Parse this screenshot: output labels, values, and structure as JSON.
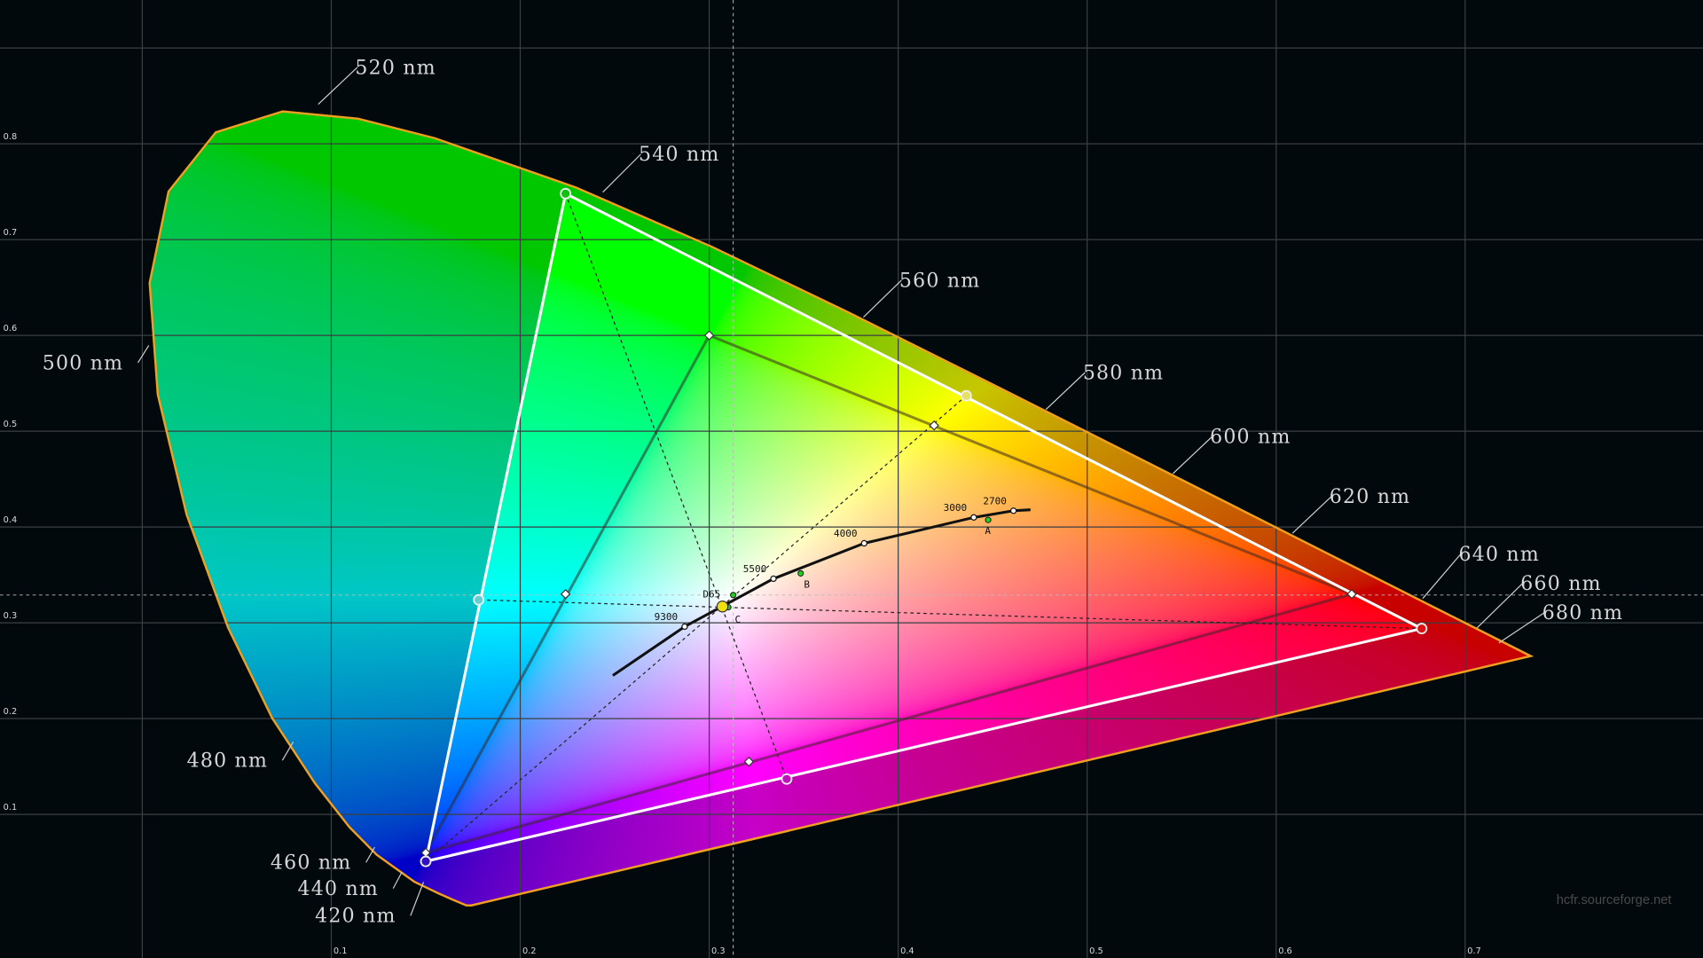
{
  "watermark": "hcfr.sourceforge.net",
  "chart_data": {
    "type": "scatter",
    "title": "",
    "xlabel": "",
    "ylabel": "",
    "xlim": [
      0.0,
      0.82
    ],
    "ylim": [
      0.0,
      0.95
    ],
    "grid": true,
    "x_ticks": [
      "0.1",
      "0.2",
      "0.3",
      "0.4",
      "0.5",
      "0.6",
      "0.7"
    ],
    "y_ticks": [
      "0.1",
      "0.2",
      "0.3",
      "0.4",
      "0.5",
      "0.6",
      "0.7",
      "0.8"
    ],
    "spectral_locus": [
      [
        380,
        0.1741,
        0.005
      ],
      [
        420,
        0.1714,
        0.0051
      ],
      [
        440,
        0.1644,
        0.0109
      ],
      [
        450,
        0.1566,
        0.0177
      ],
      [
        460,
        0.144,
        0.0297
      ],
      [
        470,
        0.1241,
        0.0578
      ],
      [
        475,
        0.1096,
        0.0868
      ],
      [
        480,
        0.0913,
        0.1327
      ],
      [
        485,
        0.0687,
        0.2007
      ],
      [
        490,
        0.0454,
        0.295
      ],
      [
        495,
        0.0235,
        0.4127
      ],
      [
        500,
        0.0082,
        0.5384
      ],
      [
        505,
        0.0039,
        0.6548
      ],
      [
        510,
        0.0139,
        0.7502
      ],
      [
        515,
        0.0389,
        0.812
      ],
      [
        520,
        0.0743,
        0.8338
      ],
      [
        525,
        0.1142,
        0.8262
      ],
      [
        530,
        0.1547,
        0.8059
      ],
      [
        540,
        0.2296,
        0.7543
      ],
      [
        550,
        0.3016,
        0.6923
      ],
      [
        560,
        0.3731,
        0.6245
      ],
      [
        570,
        0.4441,
        0.5547
      ],
      [
        580,
        0.5125,
        0.4866
      ],
      [
        590,
        0.5752,
        0.4242
      ],
      [
        600,
        0.627,
        0.3725
      ],
      [
        620,
        0.6915,
        0.3083
      ],
      [
        640,
        0.719,
        0.2809
      ],
      [
        700,
        0.7347,
        0.2653
      ]
    ],
    "wavelength_labels": [
      "520 nm",
      "540 nm",
      "560 nm",
      "580 nm",
      "600 nm",
      "620 nm",
      "640 nm",
      "660 nm",
      "680 nm",
      "500 nm",
      "480 nm",
      "460 nm",
      "440 nm",
      "420 nm"
    ],
    "measured_gamut": {
      "red": [
        0.677,
        0.294
      ],
      "green": [
        0.224,
        0.748
      ],
      "blue": [
        0.15,
        0.051
      ],
      "cyan": [
        0.178,
        0.324
      ],
      "magenta": [
        0.341,
        0.137
      ],
      "yellow": [
        0.436,
        0.537
      ],
      "white": [
        0.307,
        0.317
      ]
    },
    "reference_gamut": {
      "red": [
        0.64,
        0.33
      ],
      "green": [
        0.3,
        0.6
      ],
      "blue": [
        0.15,
        0.06
      ],
      "cyan": [
        0.224,
        0.33
      ],
      "magenta": [
        0.321,
        0.155
      ],
      "yellow": [
        0.419,
        0.506
      ]
    },
    "reference_white": [
      0.3127,
      0.329
    ],
    "planckian_locus": [
      [
        0.249,
        0.245
      ],
      [
        0.287,
        0.296
      ],
      [
        0.334,
        0.346
      ],
      [
        0.382,
        0.383
      ],
      [
        0.44,
        0.41
      ],
      [
        0.461,
        0.417
      ],
      [
        0.47,
        0.418
      ]
    ],
    "cct_points": [
      {
        "label": "9300",
        "x": 0.287,
        "y": 0.296
      },
      {
        "label": "5500",
        "x": 0.334,
        "y": 0.346
      },
      {
        "label": "4000",
        "x": 0.382,
        "y": 0.383
      },
      {
        "label": "3000",
        "x": 0.44,
        "y": 0.41
      },
      {
        "label": "2700",
        "x": 0.461,
        "y": 0.417
      }
    ],
    "illuminants": [
      {
        "label": "A",
        "x": 0.4476,
        "y": 0.4074
      },
      {
        "label": "B",
        "x": 0.3484,
        "y": 0.3516
      },
      {
        "label": "C",
        "x": 0.3101,
        "y": 0.3162
      },
      {
        "label": "D65",
        "x": 0.3127,
        "y": 0.329
      }
    ],
    "colors": {
      "locus_border": "#f0a020",
      "measured_gamut": "#ffffff",
      "background": "#01090c",
      "grid": "#3a3f42",
      "white_point": "#f0e010",
      "illuminant": "#20d020"
    }
  }
}
